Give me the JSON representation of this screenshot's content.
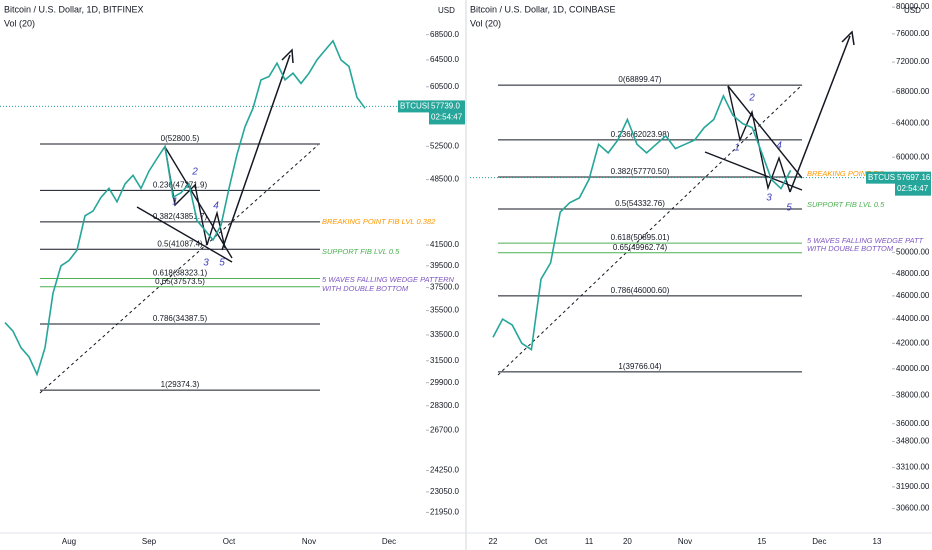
{
  "chart_data": [
    {
      "type": "line",
      "title": "Bitcoin / U.S. Dollar, 1D, BITFINEX",
      "subtitle": "Vol (20)",
      "axis_unit": "USD",
      "log": true,
      "color": "#26a69a",
      "categories": [
        null,
        null,
        null,
        null,
        null,
        null,
        null,
        null,
        "Aug",
        null,
        null,
        null,
        null,
        null,
        null,
        null,
        null,
        null,
        "Sep",
        null,
        null,
        null,
        null,
        null,
        null,
        null,
        null,
        null,
        "Oct",
        null,
        null,
        null,
        null,
        null,
        null,
        null,
        null,
        null,
        "Nov",
        null,
        null,
        null,
        null,
        null,
        null,
        null,
        null,
        null,
        "Dec"
      ],
      "values": [
        34500,
        33800,
        32500,
        31800,
        30500,
        32500,
        37000,
        39500,
        40000,
        41000,
        44500,
        45000,
        46500,
        47500,
        46000,
        48000,
        49000,
        47500,
        49500,
        51000,
        52500,
        46500,
        47000,
        48000,
        44000,
        43000,
        42000,
        43500,
        47500,
        51500,
        55000,
        57500,
        61500,
        62000,
        64000,
        61500,
        62500,
        61000,
        62500,
        64500,
        66000,
        67500,
        64500,
        63500,
        59000,
        57500,
        null,
        null,
        null
      ],
      "ylim": [
        20900,
        74400
      ],
      "yticks": [
        {
          "value": 68500,
          "label": "68500.0"
        },
        {
          "value": 64500,
          "label": "64500.0"
        },
        {
          "value": 60500,
          "label": "60500.0"
        },
        {
          "value": 52500,
          "label": "52500.0"
        },
        {
          "value": 48500,
          "label": "48500.0"
        },
        {
          "value": 41500,
          "label": "41500.0"
        },
        {
          "value": 39500,
          "label": "39500.0"
        },
        {
          "value": 37500,
          "label": "37500.0"
        },
        {
          "value": 35500,
          "label": "35500.0"
        },
        {
          "value": 33500,
          "label": "33500.0"
        },
        {
          "value": 31500,
          "label": "31500.0"
        },
        {
          "value": 29900,
          "label": "29900.0"
        },
        {
          "value": 28300,
          "label": "28300.0"
        },
        {
          "value": 26700,
          "label": "26700.0"
        },
        {
          "value": 24250,
          "label": "24250.0"
        },
        {
          "value": 23050,
          "label": "23050.0"
        },
        {
          "value": 21950,
          "label": "21950.0"
        }
      ],
      "levels": [
        {
          "value": 52800.5,
          "label": "0(52800.5)",
          "color": "#131722"
        },
        {
          "value": 47271.9,
          "label": "0.236(47271.9)",
          "color": "#131722"
        },
        {
          "value": 43851.7,
          "label": "0.382(43851.7)",
          "color": "#131722"
        },
        {
          "value": 41087.4,
          "label": "0.5(41087.4)",
          "color": "#131722"
        },
        {
          "value": 38323.1,
          "label": "0.618(38323.1)",
          "color": "#4caf50"
        },
        {
          "value": 37573.5,
          "label": "0.65(37573.5)",
          "color": "#4caf50"
        },
        {
          "value": 34387.5,
          "label": "0.786(34387.5)",
          "color": "#131722"
        },
        {
          "value": 29374.3,
          "label": "1(29374.3)",
          "color": "#131722"
        }
      ],
      "annotations": [
        {
          "text": "BREAKING POINT FIB LVL 0.382",
          "color": "#ff9800"
        },
        {
          "text": "SUPPORT FIB LVL 0.5",
          "color": "#4caf50"
        },
        {
          "text": "5 WAVES FALLING WEDGE PATTERN",
          "color": "#7e57c2"
        },
        {
          "text": "WITH DOUBLE BOTTOM",
          "color": "#7e57c2"
        }
      ],
      "waves": [
        "1",
        "2",
        "3",
        "4",
        "5"
      ],
      "price_tag": {
        "symbol": "BTCUSD",
        "price": {
          "value": 57739,
          "label": "57739.0"
        },
        "timer": "02:54:47"
      }
    },
    {
      "type": "line",
      "title": "Bitcoin / U.S. Dollar, 1D, COINBASE",
      "subtitle": "Vol (20)",
      "axis_unit": "USD",
      "log": true,
      "color": "#26a69a",
      "categories": [
        "22",
        null,
        null,
        null,
        null,
        "Oct",
        null,
        null,
        null,
        null,
        "11",
        null,
        null,
        null,
        "20",
        null,
        null,
        null,
        null,
        null,
        "Nov",
        null,
        null,
        null,
        null,
        null,
        null,
        null,
        "15",
        null,
        null,
        null,
        null,
        null,
        "Dec",
        null,
        null,
        null,
        null,
        null,
        "13"
      ],
      "values": [
        42500,
        44000,
        43500,
        42000,
        41500,
        47500,
        49000,
        54000,
        55000,
        55500,
        57500,
        61500,
        60500,
        62000,
        64500,
        61500,
        60500,
        61500,
        62500,
        61000,
        61500,
        62000,
        63500,
        64500,
        67500,
        65000,
        64000,
        63500,
        60500,
        57500,
        56500,
        58500,
        null,
        null,
        null,
        null,
        null,
        null,
        null,
        null,
        null
      ],
      "ylim": [
        29200,
        81100
      ],
      "yticks": [
        {
          "value": 80000,
          "label": "80000.00"
        },
        {
          "value": 76000,
          "label": "76000.00"
        },
        {
          "value": 72000,
          "label": "72000.00"
        },
        {
          "value": 68000,
          "label": "68000.00"
        },
        {
          "value": 64000,
          "label": "64000.00"
        },
        {
          "value": 60000,
          "label": "60000.00"
        },
        {
          "value": 50000,
          "label": "50000.00"
        },
        {
          "value": 48000,
          "label": "48000.00"
        },
        {
          "value": 46000,
          "label": "46000.00"
        },
        {
          "value": 44000,
          "label": "44000.00"
        },
        {
          "value": 42000,
          "label": "42000.00"
        },
        {
          "value": 40000,
          "label": "40000.00"
        },
        {
          "value": 38000,
          "label": "38000.00"
        },
        {
          "value": 36000,
          "label": "36000.00"
        },
        {
          "value": 34800,
          "label": "34800.00"
        },
        {
          "value": 33100,
          "label": "33100.00"
        },
        {
          "value": 31900,
          "label": "31900.00"
        },
        {
          "value": 30600,
          "label": "30600.00"
        }
      ],
      "levels": [
        {
          "value": 68899.47,
          "label": "0(68899.47)",
          "color": "#131722"
        },
        {
          "value": 62023.98,
          "label": "0.236(62023.98)",
          "color": "#131722"
        },
        {
          "value": 57770.5,
          "label": "0.382(57770.50)",
          "color": "#131722"
        },
        {
          "value": 54332.76,
          "label": "0.5(54332.76)",
          "color": "#131722"
        },
        {
          "value": 50895.01,
          "label": "0.618(50895.01)",
          "color": "#4caf50"
        },
        {
          "value": 49962.74,
          "label": "0.65(49962.74)",
          "color": "#4caf50"
        },
        {
          "value": 46000.6,
          "label": "0.786(46000.60)",
          "color": "#131722"
        },
        {
          "value": 39766.04,
          "label": "1(39766.04)",
          "color": "#131722"
        }
      ],
      "annotations": [
        {
          "text": "BREAKING POINT FIB",
          "color": "#ff9800"
        },
        {
          "text": "SUPPORT FIB LVL 0.5",
          "color": "#4caf50"
        },
        {
          "text": "5 WAVES FALLING WEDGE PATT",
          "color": "#7e57c2"
        },
        {
          "text": "WITH DOUBLE BOTTOM",
          "color": "#7e57c2"
        }
      ],
      "waves": [
        "1",
        "2",
        "3",
        "4",
        "5"
      ],
      "price_tag": {
        "symbol": "BTCUSD",
        "price": {
          "value": 57697.16,
          "label": "57697.16"
        },
        "timer": "02:54:47"
      }
    }
  ]
}
